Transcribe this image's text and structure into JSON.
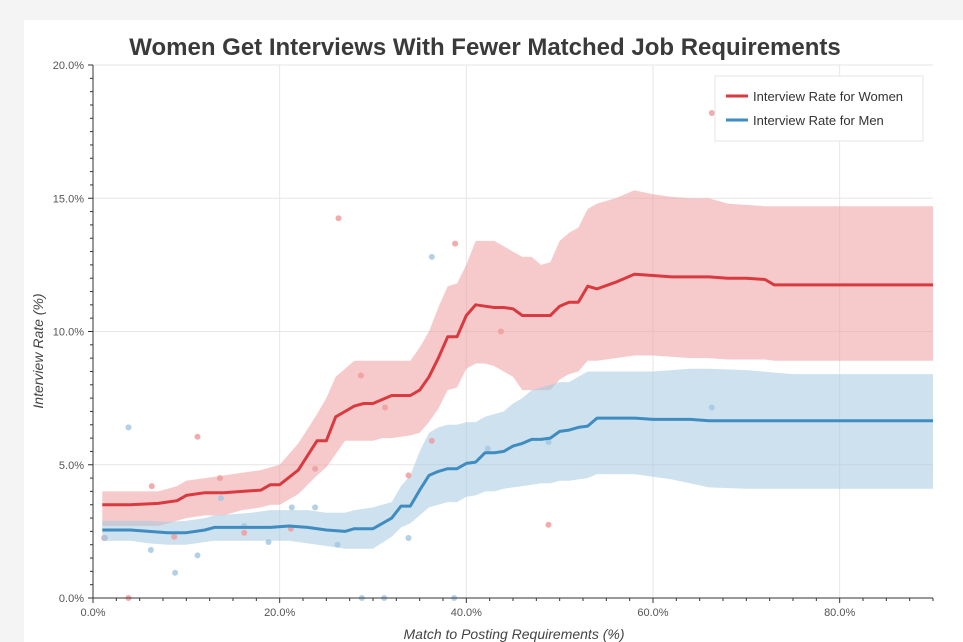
{
  "chart_data": {
    "type": "line",
    "title": "Women Get Interviews With Fewer Matched Job Requirements",
    "xlabel": "Match to Posting Requirements (%)",
    "ylabel": "Interview Rate (%)",
    "xlim": [
      0,
      90
    ],
    "ylim": [
      0,
      20
    ],
    "x_ticks": [
      0,
      20,
      40,
      60,
      80
    ],
    "x_tick_labels": [
      "0.0%",
      "20.0%",
      "40.0%",
      "60.0%",
      "80.0%"
    ],
    "y_ticks": [
      0,
      5,
      10,
      15,
      20
    ],
    "y_tick_labels": [
      "0.0%",
      "5.0%",
      "10.0%",
      "15.0%",
      "20.0%"
    ],
    "grid": true,
    "legend_position": "top-right",
    "series": [
      {
        "name": "Interview Rate for Women",
        "color": "#d93a3f",
        "band_color": "#ef9ea0",
        "x": [
          1,
          4,
          7,
          9,
          10,
          12,
          14,
          16,
          18,
          19,
          20,
          22,
          24,
          25,
          26,
          27,
          28,
          29,
          30,
          31,
          32,
          34,
          35,
          36,
          37,
          38,
          39,
          40,
          41,
          42,
          43,
          44,
          45,
          46,
          47,
          48,
          49,
          50,
          51,
          52,
          53,
          54,
          56,
          58,
          60,
          62,
          64,
          66,
          68,
          70,
          72,
          73,
          76,
          80,
          84,
          88,
          90
        ],
        "y": [
          3.5,
          3.5,
          3.55,
          3.65,
          3.85,
          3.95,
          3.95,
          4.0,
          4.05,
          4.25,
          4.25,
          4.8,
          5.9,
          5.9,
          6.8,
          7.0,
          7.2,
          7.3,
          7.3,
          7.45,
          7.6,
          7.6,
          7.8,
          8.3,
          9.0,
          9.8,
          9.8,
          10.6,
          11.0,
          10.95,
          10.9,
          10.9,
          10.85,
          10.6,
          10.6,
          10.6,
          10.6,
          10.95,
          11.1,
          11.1,
          11.7,
          11.6,
          11.85,
          12.15,
          12.1,
          12.05,
          12.05,
          12.05,
          12.0,
          12.0,
          11.95,
          11.75,
          11.75,
          11.75,
          11.75,
          11.75,
          11.75
        ],
        "upper": [
          4.0,
          4.0,
          4.0,
          4.2,
          4.4,
          4.5,
          4.6,
          4.7,
          4.8,
          4.9,
          5.0,
          5.8,
          6.9,
          7.5,
          8.3,
          8.6,
          8.9,
          8.9,
          8.9,
          8.9,
          8.9,
          8.9,
          9.4,
          10.0,
          10.9,
          11.7,
          11.8,
          12.5,
          13.4,
          13.4,
          13.4,
          13.2,
          13.0,
          12.8,
          12.8,
          12.5,
          12.6,
          13.4,
          13.7,
          13.9,
          14.6,
          14.8,
          15.0,
          15.3,
          15.15,
          15.05,
          15.0,
          15.0,
          14.8,
          14.75,
          14.7,
          14.7,
          14.7,
          14.7,
          14.7,
          14.7,
          14.7
        ],
        "lower": [
          2.7,
          2.7,
          2.7,
          2.9,
          3.0,
          3.1,
          3.1,
          3.3,
          3.4,
          3.5,
          3.5,
          3.9,
          4.6,
          4.9,
          5.4,
          5.9,
          5.9,
          5.9,
          5.9,
          6.0,
          6.0,
          6.1,
          6.2,
          6.6,
          7.1,
          7.8,
          7.9,
          8.6,
          8.8,
          8.8,
          8.7,
          8.5,
          8.3,
          7.8,
          7.8,
          7.8,
          7.8,
          8.2,
          8.4,
          8.5,
          8.9,
          8.9,
          9.0,
          9.1,
          9.1,
          9.05,
          9.0,
          9.0,
          8.95,
          8.95,
          8.95,
          8.9,
          8.9,
          8.9,
          8.9,
          8.9,
          8.9
        ],
        "scatter_x": [
          1.2,
          6.3,
          8.7,
          11.2,
          13.6,
          16.2,
          21.2,
          23.8,
          26.3,
          28.7,
          31.3,
          33.8,
          36.3,
          38.8,
          43.7,
          48.8,
          66.3,
          3.8
        ],
        "scatter_y": [
          2.25,
          4.2,
          2.3,
          6.05,
          4.5,
          2.45,
          2.6,
          4.85,
          14.25,
          8.35,
          7.15,
          4.6,
          5.9,
          13.3,
          10.0,
          2.75,
          18.2,
          0.0
        ]
      },
      {
        "name": "Interview Rate for Men",
        "color": "#3f8cc0",
        "band_color": "#a6c8e0",
        "x": [
          1,
          4,
          6,
          8,
          10,
          12,
          13,
          15,
          17,
          19,
          21,
          23,
          25,
          27,
          28,
          30,
          32,
          33,
          34,
          35,
          36,
          37,
          38,
          39,
          40,
          41,
          42,
          43,
          44,
          45,
          46,
          47,
          48,
          49,
          50,
          51,
          52,
          53,
          54,
          56,
          58,
          60,
          62,
          64,
          66,
          70,
          75,
          80,
          85,
          90
        ],
        "y": [
          2.55,
          2.55,
          2.5,
          2.45,
          2.45,
          2.55,
          2.65,
          2.65,
          2.65,
          2.65,
          2.7,
          2.65,
          2.55,
          2.5,
          2.6,
          2.6,
          3.0,
          3.45,
          3.45,
          4.05,
          4.6,
          4.75,
          4.85,
          4.85,
          5.05,
          5.1,
          5.45,
          5.45,
          5.5,
          5.7,
          5.8,
          5.95,
          5.95,
          6.0,
          6.25,
          6.3,
          6.4,
          6.45,
          6.75,
          6.75,
          6.75,
          6.7,
          6.7,
          6.7,
          6.65,
          6.65,
          6.65,
          6.65,
          6.65,
          6.65
        ],
        "upper": [
          2.9,
          2.9,
          2.9,
          2.85,
          2.9,
          3.0,
          3.1,
          3.15,
          3.2,
          3.3,
          3.3,
          3.3,
          3.2,
          3.2,
          3.3,
          3.4,
          3.6,
          4.2,
          4.6,
          5.5,
          6.2,
          6.4,
          6.5,
          6.5,
          6.6,
          6.6,
          6.8,
          6.9,
          7.0,
          7.3,
          7.5,
          7.8,
          7.9,
          8.0,
          8.1,
          8.1,
          8.3,
          8.5,
          8.5,
          8.5,
          8.5,
          8.5,
          8.55,
          8.6,
          8.6,
          8.55,
          8.4,
          8.4,
          8.4,
          8.4
        ],
        "lower": [
          2.15,
          2.15,
          2.05,
          2.0,
          2.0,
          2.1,
          2.15,
          2.15,
          2.15,
          2.15,
          2.15,
          2.05,
          1.95,
          1.85,
          1.85,
          1.85,
          2.3,
          2.65,
          2.8,
          3.1,
          3.4,
          3.5,
          3.6,
          3.6,
          3.8,
          3.85,
          4.0,
          4.0,
          4.1,
          4.15,
          4.2,
          4.25,
          4.3,
          4.3,
          4.4,
          4.4,
          4.45,
          4.5,
          4.65,
          4.65,
          4.65,
          4.55,
          4.45,
          4.3,
          4.15,
          4.1,
          4.1,
          4.1,
          4.1,
          4.1
        ],
        "scatter_x": [
          1.3,
          3.8,
          6.2,
          8.8,
          11.2,
          13.7,
          16.2,
          18.8,
          21.3,
          23.8,
          26.2,
          28.8,
          31.2,
          33.8,
          36.3,
          38.7,
          42.3,
          48.8,
          66.3
        ],
        "scatter_y": [
          2.25,
          6.4,
          1.8,
          0.95,
          1.6,
          3.75,
          2.7,
          2.1,
          3.4,
          3.4,
          2.0,
          0.0,
          0.0,
          2.25,
          12.8,
          0.0,
          5.6,
          5.85,
          7.15
        ]
      }
    ]
  }
}
